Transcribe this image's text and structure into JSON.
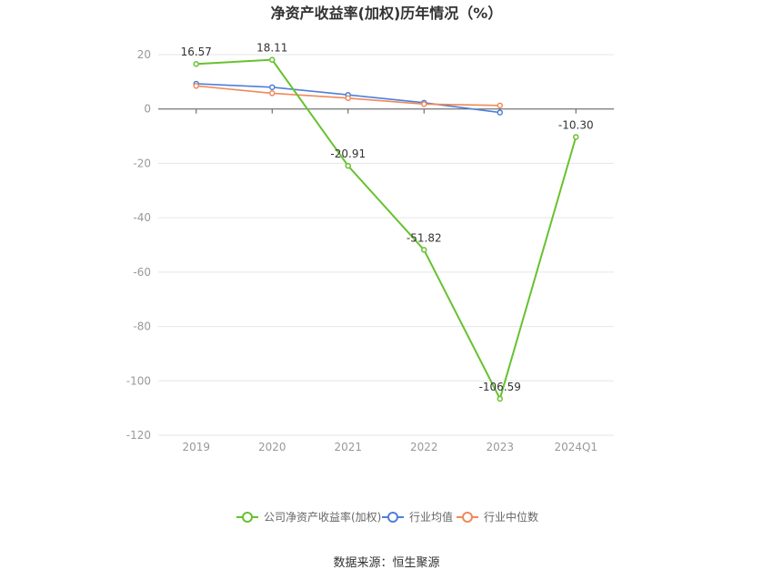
{
  "chart_data": {
    "type": "line",
    "title": "净资产收益率(加权)历年情况（%）",
    "categories": [
      "2019",
      "2020",
      "2021",
      "2022",
      "2023",
      "2024Q1"
    ],
    "ylim": [
      -120,
      20
    ],
    "yticks": [
      "20",
      "0",
      "-20",
      "-40",
      "-60",
      "-80",
      "-100",
      "-120"
    ],
    "grid": true,
    "legend_position": "bottom",
    "series": [
      {
        "name": "公司净资产收益率(加权)",
        "color": "#66c22e",
        "values": [
          16.57,
          18.11,
          -20.91,
          -51.82,
          -106.59,
          -10.3
        ],
        "labels": [
          "16.57",
          "18.11",
          "-20.91",
          "-51.82",
          "-106.59",
          "-10.30"
        ]
      },
      {
        "name": "行业均值",
        "color": "#4f7fd9",
        "values": [
          9.3,
          8.0,
          5.2,
          2.3,
          -1.3,
          null
        ]
      },
      {
        "name": "行业中位数",
        "color": "#f0895a",
        "values": [
          8.5,
          5.8,
          4.0,
          1.8,
          1.3,
          null
        ]
      }
    ]
  },
  "source": "数据来源：恒生聚源"
}
